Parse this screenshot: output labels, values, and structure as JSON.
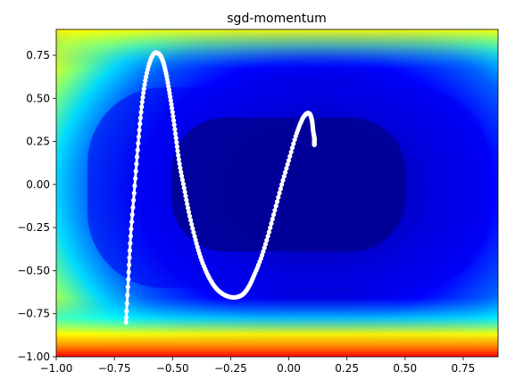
{
  "chart_data": {
    "type": "line",
    "title": "sgd-momentum",
    "xlabel": "",
    "ylabel": "",
    "xlim": [
      -1.0,
      0.9
    ],
    "ylim": [
      -1.0,
      0.9
    ],
    "x_ticks": [
      -1.0,
      -0.75,
      -0.5,
      -0.25,
      0.0,
      0.25,
      0.5,
      0.75
    ],
    "y_ticks": [
      -1.0,
      -0.75,
      -0.5,
      -0.25,
      0.0,
      0.25,
      0.5,
      0.75
    ],
    "x_tick_labels": [
      "−1.00",
      "−0.75",
      "−0.50",
      "−0.25",
      "0.00",
      "0.25",
      "0.50",
      "0.75"
    ],
    "y_tick_labels": [
      "−1.00",
      "−0.75",
      "−0.50",
      "−0.25",
      "0.00",
      "0.25",
      "0.50",
      "0.75"
    ],
    "grid": false,
    "background": "filled contour, jet colormap",
    "colormap": [
      "#00007f",
      "#0000ff",
      "#00ffff",
      "#ffff00",
      "#ff0000"
    ],
    "trajectory_color": "#ffffff",
    "series": [
      {
        "x": [
          -0.7,
          -0.69,
          -0.68,
          -0.665,
          -0.65,
          -0.635,
          -0.62,
          -0.6,
          -0.58,
          -0.56,
          -0.545,
          -0.53,
          -0.515,
          -0.5,
          -0.485,
          -0.47,
          -0.45,
          -0.43,
          -0.405,
          -0.38,
          -0.35,
          -0.32,
          -0.29,
          -0.26,
          -0.23,
          -0.2,
          -0.175,
          -0.15,
          -0.12,
          -0.09,
          -0.06,
          -0.03,
          0.0,
          0.03,
          0.055,
          0.075,
          0.09,
          0.1,
          0.105,
          0.11,
          0.11,
          0.11
        ],
        "y": [
          -0.8,
          -0.55,
          -0.3,
          -0.05,
          0.2,
          0.42,
          0.58,
          0.7,
          0.76,
          0.76,
          0.73,
          0.66,
          0.55,
          0.42,
          0.27,
          0.12,
          -0.02,
          -0.16,
          -0.3,
          -0.42,
          -0.52,
          -0.59,
          -0.63,
          -0.65,
          -0.655,
          -0.64,
          -0.6,
          -0.53,
          -0.43,
          -0.3,
          -0.15,
          0.0,
          0.14,
          0.28,
          0.37,
          0.41,
          0.41,
          0.37,
          0.31,
          0.27,
          0.25,
          0.23
        ]
      }
    ]
  }
}
